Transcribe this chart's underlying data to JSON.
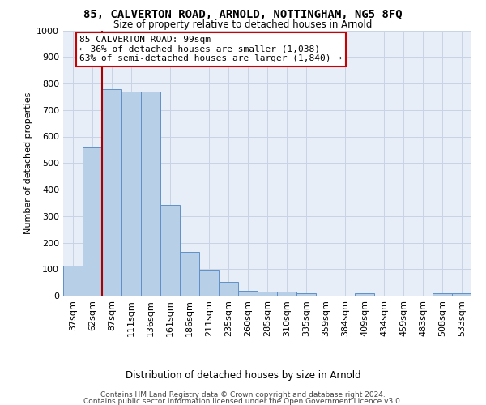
{
  "title": "85, CALVERTON ROAD, ARNOLD, NOTTINGHAM, NG5 8FQ",
  "subtitle": "Size of property relative to detached houses in Arnold",
  "xlabel": "Distribution of detached houses by size in Arnold",
  "ylabel": "Number of detached properties",
  "footnote1": "Contains HM Land Registry data © Crown copyright and database right 2024.",
  "footnote2": "Contains public sector information licensed under the Open Government Licence v3.0.",
  "annotation_line1": "85 CALVERTON ROAD: 99sqm",
  "annotation_line2": "← 36% of detached houses are smaller (1,038)",
  "annotation_line3": "63% of semi-detached houses are larger (1,840) →",
  "bar_color": "#b8cfe8",
  "bar_edge_color": "#6090c8",
  "property_line_color": "#aa0000",
  "grid_color": "#c8d4e4",
  "background_color": "#e8eef8",
  "categories": [
    "37sqm",
    "62sqm",
    "87sqm",
    "111sqm",
    "136sqm",
    "161sqm",
    "186sqm",
    "211sqm",
    "235sqm",
    "260sqm",
    "285sqm",
    "310sqm",
    "335sqm",
    "359sqm",
    "384sqm",
    "409sqm",
    "434sqm",
    "459sqm",
    "483sqm",
    "508sqm",
    "533sqm"
  ],
  "values": [
    112,
    560,
    780,
    770,
    770,
    343,
    165,
    97,
    52,
    18,
    14,
    14,
    9,
    0,
    0,
    10,
    0,
    0,
    0,
    8,
    8
  ],
  "ylim": [
    0,
    1000
  ],
  "yticks": [
    0,
    100,
    200,
    300,
    400,
    500,
    600,
    700,
    800,
    900,
    1000
  ],
  "property_line_x": 2.0
}
